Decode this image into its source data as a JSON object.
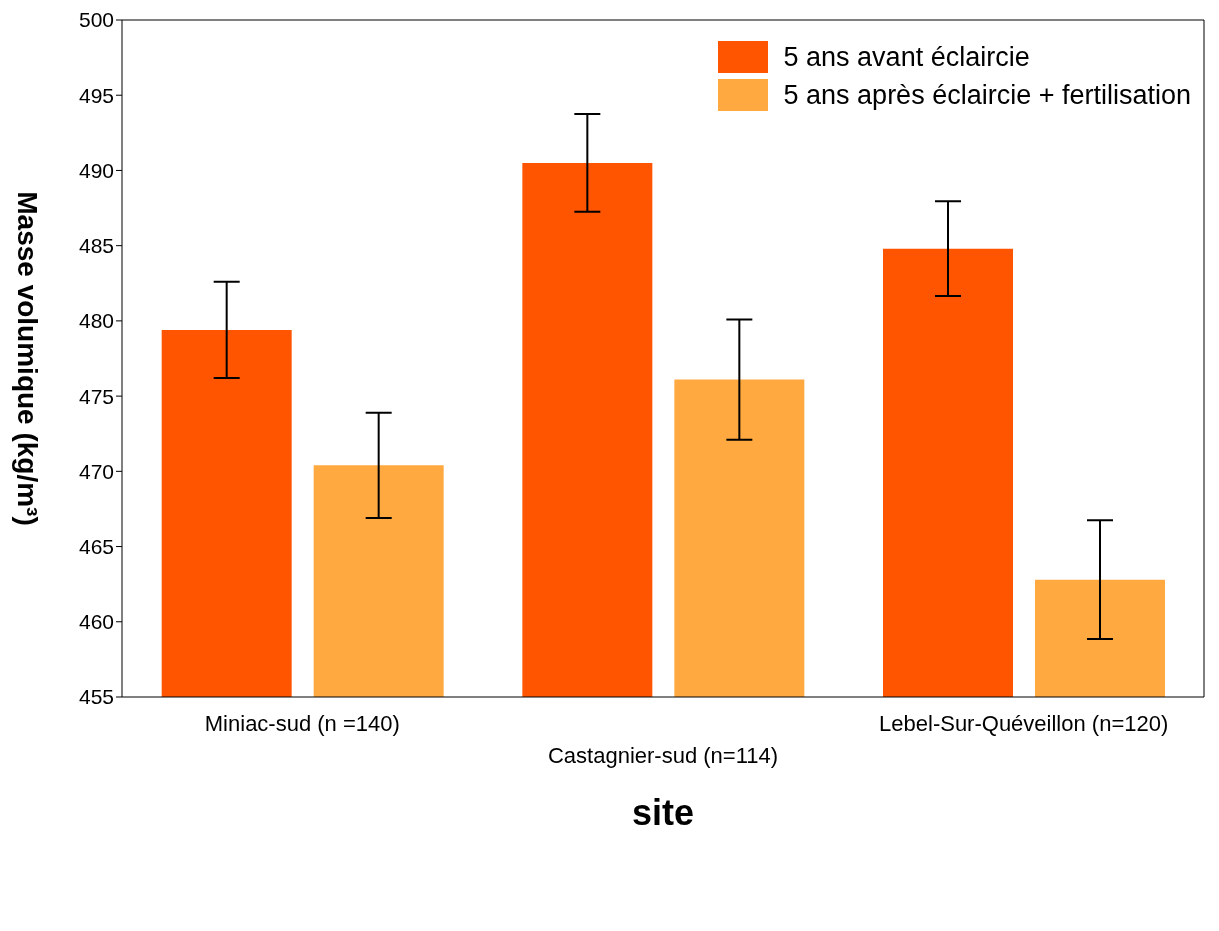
{
  "chart_data": {
    "type": "bar",
    "xlabel": "site",
    "ylabel": "Masse volumique (kg/m³)",
    "categories": [
      "Miniac-sud (n =140)",
      "Castagnier-sud (n=114)",
      "Lebel-Sur-Quéveillon (n=120)"
    ],
    "series": [
      {
        "name": "5 ans avant éclaircie",
        "color": "#ff5500",
        "values": [
          479.4,
          490.5,
          484.8
        ],
        "errors": [
          3.2,
          3.25,
          3.15
        ]
      },
      {
        "name": "5 ans après éclaircie + fertilisation",
        "color": "#ffa940",
        "values": [
          470.4,
          476.1,
          462.8
        ],
        "errors": [
          3.5,
          4,
          3.95
        ]
      }
    ],
    "ylim": [
      455,
      500
    ],
    "yticks": [
      455,
      460,
      465,
      470,
      475,
      480,
      485,
      490,
      495,
      500
    ],
    "grid": false,
    "legend": "top right"
  }
}
